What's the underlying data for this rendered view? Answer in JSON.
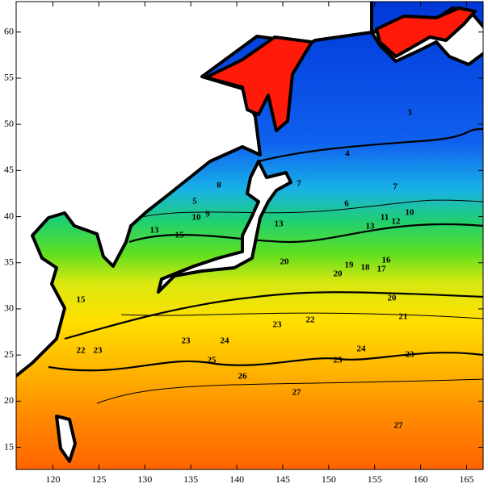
{
  "map": {
    "xlim": [
      116,
      166.8
    ],
    "ylim": [
      12.6,
      63.3
    ],
    "xticks": [
      120,
      125,
      130,
      135,
      140,
      145,
      150,
      155,
      160,
      165
    ],
    "yticks": [
      15,
      20,
      25,
      30,
      35,
      40,
      45,
      50,
      55,
      60
    ],
    "contour_labels": [
      "27",
      "27",
      "26",
      "25",
      "25",
      "24",
      "24",
      "23",
      "23",
      "23",
      "23",
      "22",
      "22",
      "21",
      "20",
      "20",
      "20",
      "19",
      "18",
      "17",
      "16",
      "15",
      "15",
      "13",
      "13",
      "13",
      "12",
      "11",
      "10",
      "10",
      "9",
      "8",
      "7",
      "7",
      "6",
      "5",
      "4",
      "3"
    ]
  }
}
